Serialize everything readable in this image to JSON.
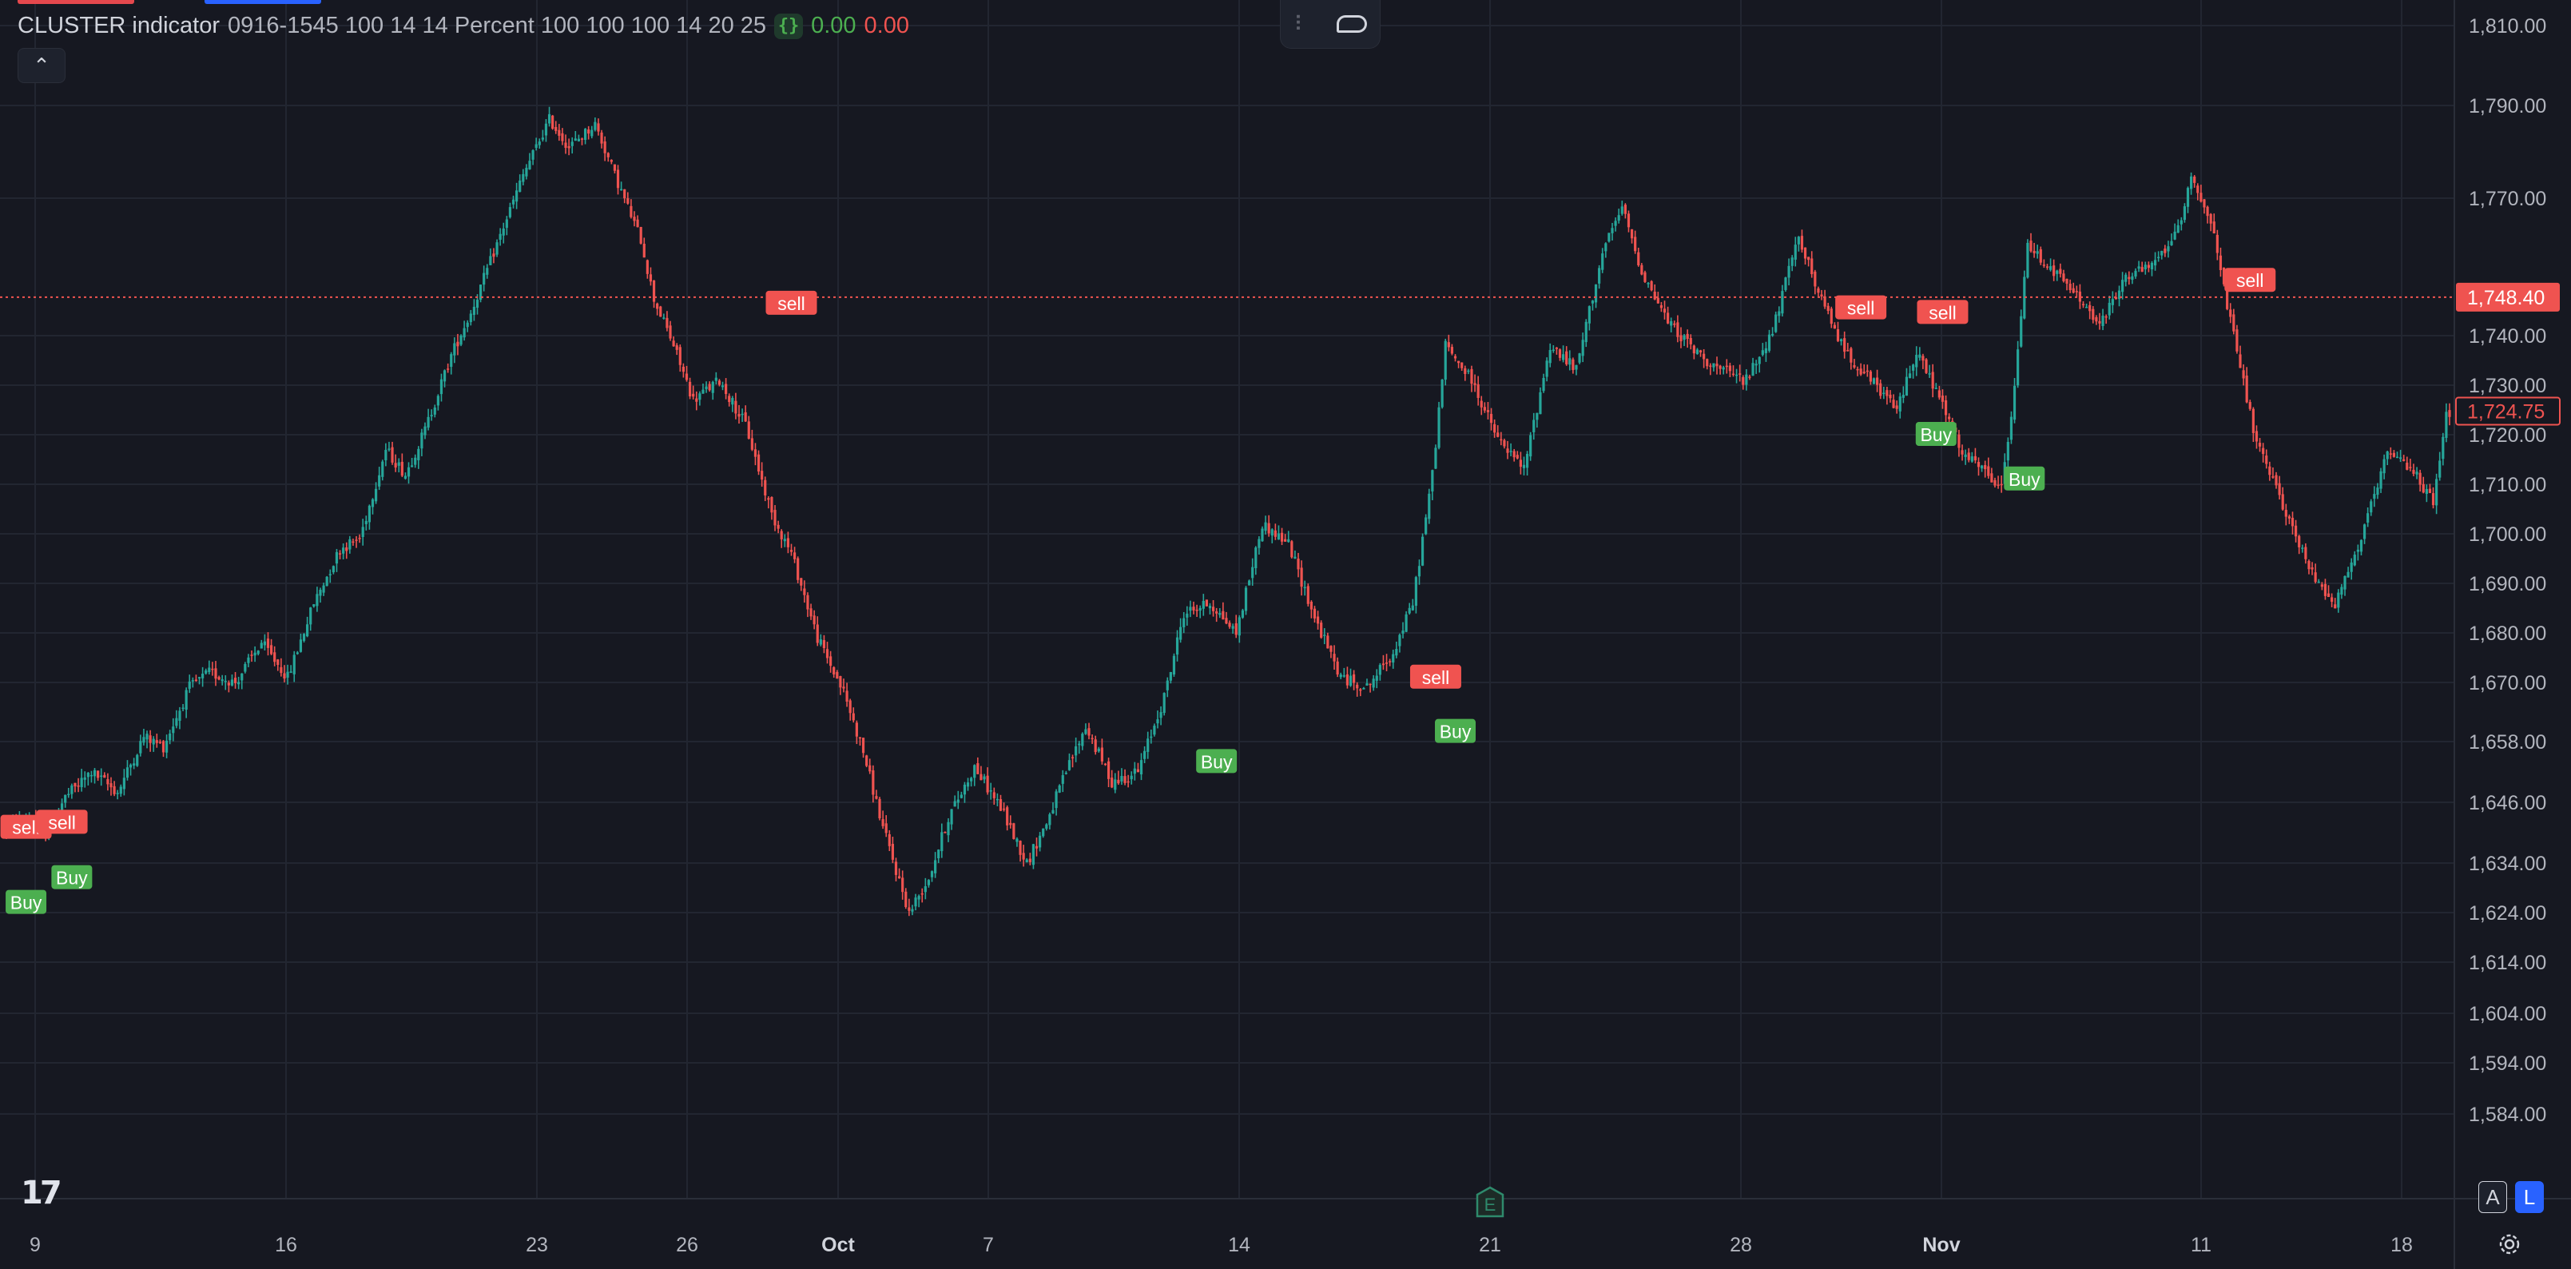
{
  "legend": {
    "indicator_name": "CLUSTER indicator",
    "params": "0916-1545 100 14 14 Percent 100 100 100 14 20 25",
    "braces_icon": "curly-braces-icon",
    "value_up": "0.00",
    "value_down": "0.00"
  },
  "collapse_icon": "chevron-up-icon",
  "toolbar": {
    "drag_icon": "drag-handle-icon",
    "shape_icon": "callout-shape-icon"
  },
  "logo": "TradingView",
  "logo_text": "17",
  "earnings_marker": "E",
  "scale_buttons": {
    "auto": "A",
    "log": "L"
  },
  "colors": {
    "background": "#161821",
    "grid": "#222631",
    "up": "#26a69a",
    "down": "#ef5350",
    "buy_label": "#4caf50",
    "sell_label": "#f05350",
    "accent": "#2962ff"
  },
  "chart_data": {
    "type": "candlestick",
    "y_axis": {
      "ticks": [
        1810,
        1790,
        1770,
        1740,
        1730,
        1720,
        1710,
        1700,
        1690,
        1680,
        1670,
        1658,
        1646,
        1634,
        1624,
        1614,
        1604,
        1594,
        1584
      ],
      "tick_labels": [
        "1,810.00",
        "1,790.00",
        "1,770.00",
        "1,740.00",
        "1,730.00",
        "1,720.00",
        "1,710.00",
        "1,700.00",
        "1,690.00",
        "1,680.00",
        "1,670.00",
        "1,658.00",
        "1,646.00",
        "1,634.00",
        "1,624.00",
        "1,614.00",
        "1,604.00",
        "1,594.00",
        "1,584.00"
      ]
    },
    "x_axis": {
      "ticks": [
        {
          "label": "9",
          "bold": false
        },
        {
          "label": "16",
          "bold": false
        },
        {
          "label": "23",
          "bold": false
        },
        {
          "label": "26",
          "bold": false
        },
        {
          "label": "Oct",
          "bold": true
        },
        {
          "label": "7",
          "bold": false
        },
        {
          "label": "14",
          "bold": false
        },
        {
          "label": "21",
          "bold": false
        },
        {
          "label": "28",
          "bold": false
        },
        {
          "label": "Nov",
          "bold": true
        },
        {
          "label": "11",
          "bold": false
        },
        {
          "label": "18",
          "bold": false
        }
      ]
    },
    "price_line": {
      "value": 1748.4,
      "label": "1,748.40"
    },
    "last_close": {
      "value": 1724.75,
      "label": "1,724.75"
    },
    "path": [
      [
        0,
        1641
      ],
      [
        8,
        1643
      ],
      [
        12,
        1640
      ],
      [
        18,
        1647
      ],
      [
        26,
        1652
      ],
      [
        34,
        1648
      ],
      [
        42,
        1659
      ],
      [
        48,
        1657
      ],
      [
        56,
        1669
      ],
      [
        62,
        1672
      ],
      [
        70,
        1670
      ],
      [
        78,
        1678
      ],
      [
        86,
        1671
      ],
      [
        94,
        1686
      ],
      [
        102,
        1697
      ],
      [
        108,
        1699
      ],
      [
        116,
        1717
      ],
      [
        122,
        1712
      ],
      [
        128,
        1721
      ],
      [
        136,
        1736
      ],
      [
        142,
        1745
      ],
      [
        150,
        1760
      ],
      [
        158,
        1775
      ],
      [
        166,
        1787
      ],
      [
        172,
        1781
      ],
      [
        180,
        1786
      ],
      [
        186,
        1775
      ],
      [
        194,
        1761
      ],
      [
        198,
        1748
      ],
      [
        204,
        1738
      ],
      [
        210,
        1727
      ],
      [
        218,
        1731
      ],
      [
        226,
        1722
      ],
      [
        234,
        1704
      ],
      [
        240,
        1696
      ],
      [
        248,
        1679
      ],
      [
        256,
        1668
      ],
      [
        262,
        1656
      ],
      [
        268,
        1641
      ],
      [
        276,
        1624
      ],
      [
        282,
        1631
      ],
      [
        288,
        1643
      ],
      [
        296,
        1653
      ],
      [
        304,
        1645
      ],
      [
        312,
        1634
      ],
      [
        318,
        1642
      ],
      [
        324,
        1652
      ],
      [
        330,
        1661
      ],
      [
        338,
        1650
      ],
      [
        346,
        1652
      ],
      [
        354,
        1667
      ],
      [
        360,
        1684
      ],
      [
        368,
        1686
      ],
      [
        376,
        1680
      ],
      [
        384,
        1702
      ],
      [
        392,
        1698
      ],
      [
        400,
        1683
      ],
      [
        408,
        1671
      ],
      [
        416,
        1669
      ],
      [
        424,
        1676
      ],
      [
        430,
        1686
      ],
      [
        436,
        1712
      ],
      [
        440,
        1738
      ],
      [
        448,
        1731
      ],
      [
        456,
        1719
      ],
      [
        464,
        1713
      ],
      [
        472,
        1738
      ],
      [
        480,
        1733
      ],
      [
        488,
        1758
      ],
      [
        494,
        1768
      ],
      [
        500,
        1754
      ],
      [
        508,
        1743
      ],
      [
        516,
        1737
      ],
      [
        524,
        1733
      ],
      [
        532,
        1731
      ],
      [
        540,
        1741
      ],
      [
        548,
        1762
      ],
      [
        554,
        1749
      ],
      [
        562,
        1737
      ],
      [
        570,
        1731
      ],
      [
        578,
        1725
      ],
      [
        584,
        1737
      ],
      [
        592,
        1726
      ],
      [
        598,
        1716
      ],
      [
        604,
        1713
      ],
      [
        610,
        1709
      ],
      [
        614,
        1729
      ],
      [
        618,
        1760
      ],
      [
        626,
        1754
      ],
      [
        634,
        1748
      ],
      [
        640,
        1742
      ],
      [
        648,
        1753
      ],
      [
        656,
        1755
      ],
      [
        664,
        1763
      ],
      [
        668,
        1775
      ],
      [
        674,
        1765
      ],
      [
        680,
        1743
      ],
      [
        688,
        1718
      ],
      [
        696,
        1706
      ],
      [
        704,
        1693
      ],
      [
        712,
        1686
      ],
      [
        720,
        1699
      ],
      [
        728,
        1716
      ],
      [
        736,
        1713
      ],
      [
        742,
        1706
      ],
      [
        746,
        1724
      ]
    ],
    "buy_signals": [
      {
        "i": 6,
        "price": 1626,
        "label": "Buy"
      },
      {
        "i": 20,
        "price": 1631,
        "label": "Buy"
      },
      {
        "i": 370,
        "price": 1654,
        "label": "Buy"
      },
      {
        "i": 443,
        "price": 1660,
        "label": "Buy"
      },
      {
        "i": 590,
        "price": 1720,
        "label": "Buy"
      },
      {
        "i": 617,
        "price": 1711,
        "label": "Buy"
      }
    ],
    "sell_signals": [
      {
        "i": 6,
        "price": 1641,
        "label": "sell"
      },
      {
        "i": 17,
        "price": 1642,
        "label": "sell"
      },
      {
        "i": 240,
        "price": 1747,
        "label": "sell"
      },
      {
        "i": 437,
        "price": 1671,
        "label": "sell"
      },
      {
        "i": 567,
        "price": 1746,
        "label": "sell"
      },
      {
        "i": 592,
        "price": 1745,
        "label": "sell"
      },
      {
        "i": 686,
        "price": 1752,
        "label": "sell"
      }
    ]
  }
}
